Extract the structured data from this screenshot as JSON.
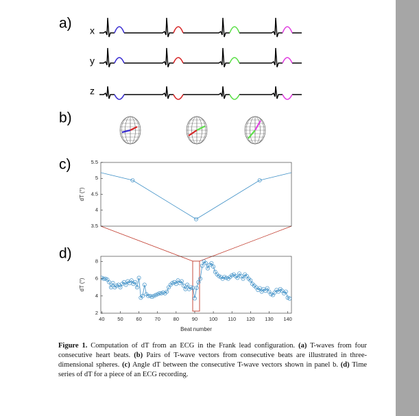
{
  "figure": {
    "panel_labels": [
      "a)",
      "b)",
      "c)",
      "d)"
    ],
    "lead_labels": [
      "x",
      "y",
      "z"
    ],
    "caption": {
      "label": "Figure 1.",
      "text": "Computation of dT from an ECG in the Frank lead configuration.",
      "parts": [
        {
          "label": "(a)",
          "text": "T-waves from four consecutive heart beats."
        },
        {
          "label": "(b)",
          "text": "Pairs of T-wave vectors from consecutive beats are illustrated in three-dimensional spheres."
        },
        {
          "label": "(c)",
          "text": "Angle dT between the consecutive T-wave vectors shown in panel b."
        },
        {
          "label": "(d)",
          "text": "Time series of dT for a piece of an ECG recording."
        }
      ]
    }
  },
  "chart_data": [
    {
      "type": "line",
      "ylabel": "dT (°)",
      "categories": [
        null,
        null,
        null,
        null,
        null
      ],
      "values": [
        5.42,
        4.94,
        3.72,
        4.94,
        5.42
      ],
      "color": "#3d8fc6",
      "ylim": [
        3.5,
        5.5
      ],
      "yticks": [
        3.5,
        4,
        4.5,
        5,
        5.5
      ]
    },
    {
      "type": "line",
      "xlabel": "Beat number",
      "ylabel": "dT (°)",
      "x": [
        40,
        41,
        42,
        43,
        44,
        45,
        46,
        47,
        48,
        49,
        50,
        51,
        52,
        53,
        54,
        55,
        56,
        57,
        58,
        59,
        60,
        61,
        62,
        63,
        64,
        65,
        66,
        67,
        68,
        69,
        70,
        71,
        72,
        73,
        74,
        75,
        76,
        77,
        78,
        79,
        80,
        81,
        82,
        83,
        84,
        85,
        86,
        87,
        88,
        89,
        90,
        91,
        92,
        93,
        94,
        95,
        96,
        97,
        98,
        99,
        100,
        101,
        102,
        103,
        104,
        105,
        106,
        107,
        108,
        109,
        110,
        111,
        112,
        113,
        114,
        115,
        116,
        117,
        118,
        119,
        120,
        121,
        122,
        123,
        124,
        125,
        126,
        127,
        128,
        129,
        130,
        131,
        132,
        133,
        134,
        135,
        136,
        137,
        138,
        139,
        140,
        141
      ],
      "values": [
        6.1,
        6.0,
        6.0,
        5.9,
        5.6,
        5.0,
        5.5,
        5.0,
        5.2,
        5.3,
        5.0,
        5.4,
        5.6,
        5.3,
        5.7,
        5.5,
        5.8,
        5.4,
        5.6,
        5.0,
        6.1,
        3.8,
        4.0,
        5.3,
        4.2,
        4.0,
        4.0,
        3.9,
        4.0,
        4.1,
        4.2,
        4.3,
        4.3,
        4.4,
        4.3,
        4.5,
        5.0,
        5.3,
        5.5,
        5.6,
        5.4,
        5.8,
        5.5,
        5.7,
        5.2,
        4.8,
        5.3,
        4.8,
        5.0,
        4.94,
        3.72,
        4.94,
        5.6,
        6.0,
        7.5,
        8.0,
        7.8,
        7.2,
        7.6,
        7.8,
        7.4,
        6.8,
        6.5,
        6.3,
        6.2,
        6.0,
        6.2,
        6.1,
        6.0,
        6.2,
        6.4,
        6.5,
        6.3,
        6.1,
        6.6,
        6.3,
        6.0,
        6.5,
        6.3,
        6.0,
        5.8,
        5.4,
        5.2,
        5.0,
        4.7,
        4.9,
        4.5,
        4.8,
        4.6,
        4.9,
        4.5,
        4.2,
        4.1,
        4.4,
        4.7,
        4.5,
        4.8,
        4.6,
        4.3,
        4.5,
        3.8,
        3.7
      ],
      "color": "#3d8fc6",
      "xlim": [
        39.5,
        142
      ],
      "ylim": [
        2,
        8.6
      ],
      "xticks": [
        40,
        50,
        60,
        70,
        80,
        90,
        100,
        110,
        120,
        130,
        140
      ],
      "yticks": [
        2,
        4,
        6,
        8
      ]
    }
  ]
}
